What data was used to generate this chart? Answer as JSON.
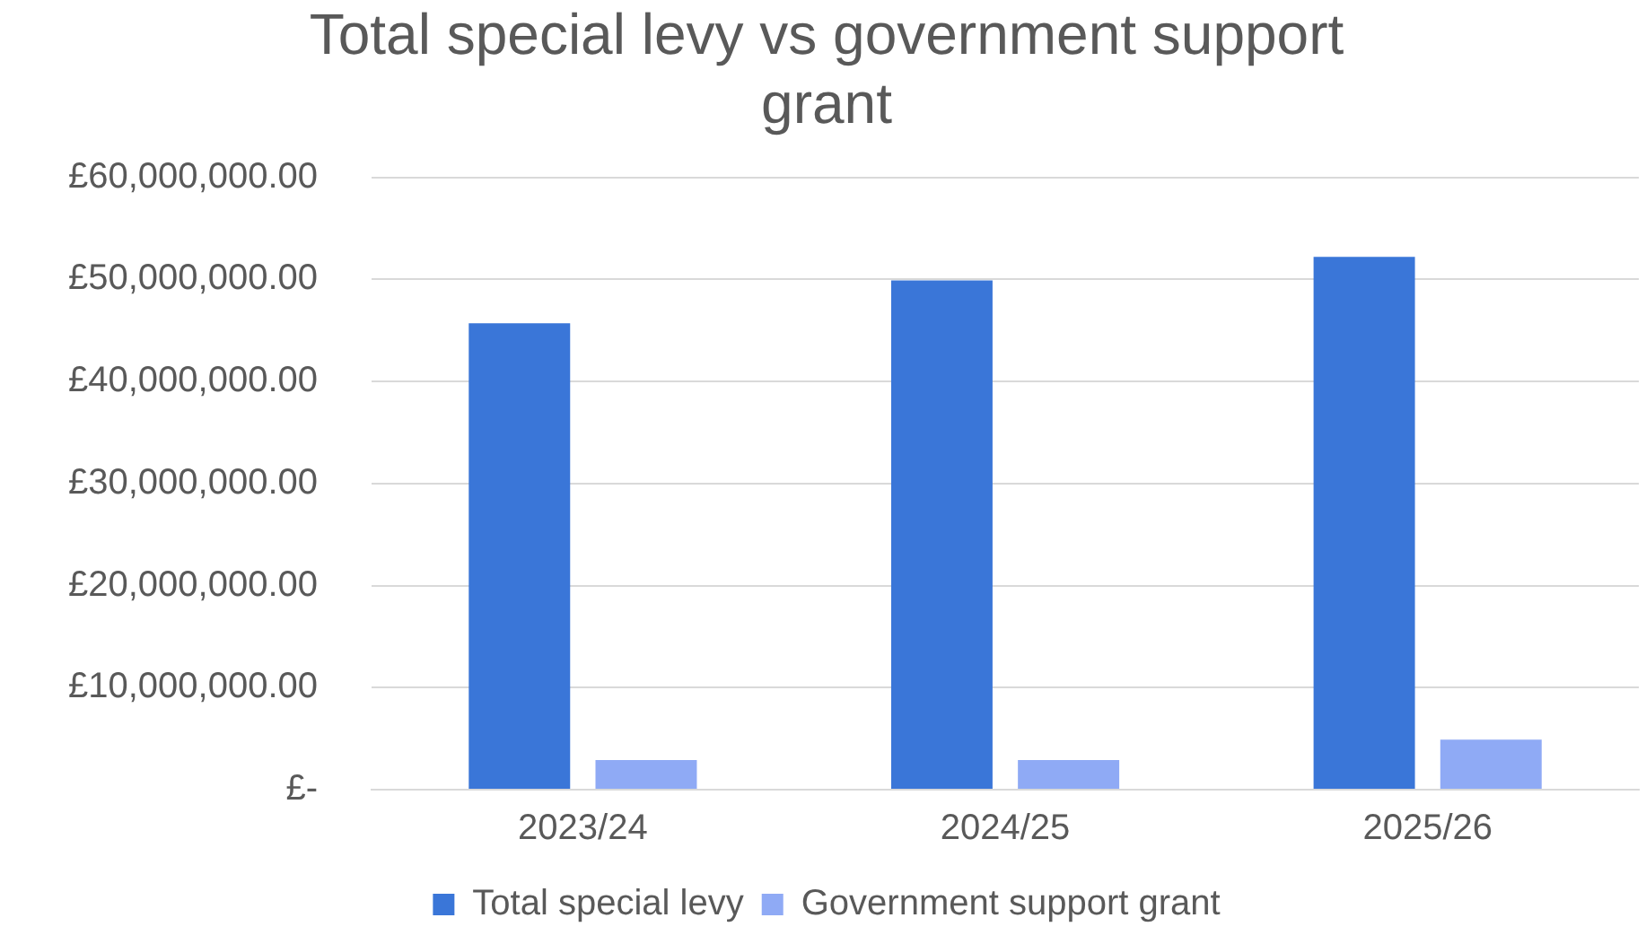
{
  "chart_data": {
    "type": "bar",
    "title": "Total special levy vs government support grant",
    "categories": [
      "2023/24",
      "2024/25",
      "2025/26"
    ],
    "series": [
      {
        "name": "Total special levy",
        "color": "#3a76d8",
        "values": [
          45700000,
          49900000,
          52200000
        ]
      },
      {
        "name": "Government support grant",
        "color": "#8faaf5",
        "values": [
          2900000,
          2900000,
          4900000
        ]
      }
    ],
    "ylim": [
      0,
      60000000
    ],
    "yticks": [
      {
        "value": 0,
        "label": "£-"
      },
      {
        "value": 10000000,
        "label": "£10,000,000.00"
      },
      {
        "value": 20000000,
        "label": "£20,000,000.00"
      },
      {
        "value": 30000000,
        "label": "£30,000,000.00"
      },
      {
        "value": 40000000,
        "label": "£40,000,000.00"
      },
      {
        "value": 50000000,
        "label": "£50,000,000.00"
      },
      {
        "value": 60000000,
        "label": "£60,000,000.00"
      }
    ],
    "grid": "y",
    "legend": "bottom"
  }
}
